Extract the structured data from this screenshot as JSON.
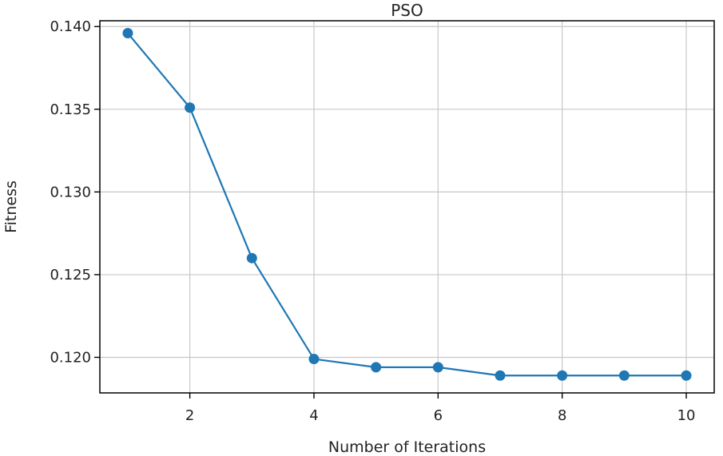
{
  "chart_data": {
    "type": "line",
    "title": "PSO",
    "xlabel": "Number of Iterations",
    "ylabel": "Fitness",
    "x": [
      1,
      2,
      3,
      4,
      5,
      6,
      7,
      8,
      9,
      10
    ],
    "series": [
      {
        "values": [
          0.1396,
          0.1351,
          0.126,
          0.1199,
          0.1194,
          0.1194,
          0.1189,
          0.1189,
          0.1189,
          0.1189
        ],
        "color": "#1f77b4",
        "marker": "circle"
      }
    ],
    "xlim": [
      0.55,
      10.45
    ],
    "ylim": [
      0.11785,
      0.14035
    ],
    "xticks": [
      2,
      4,
      6,
      8,
      10
    ],
    "xtick_labels": [
      "2",
      "4",
      "6",
      "8",
      "10"
    ],
    "yticks": [
      0.12,
      0.125,
      0.13,
      0.135,
      0.14
    ],
    "ytick_labels": [
      "0.120",
      "0.125",
      "0.130",
      "0.135",
      "0.140"
    ],
    "grid": true
  }
}
